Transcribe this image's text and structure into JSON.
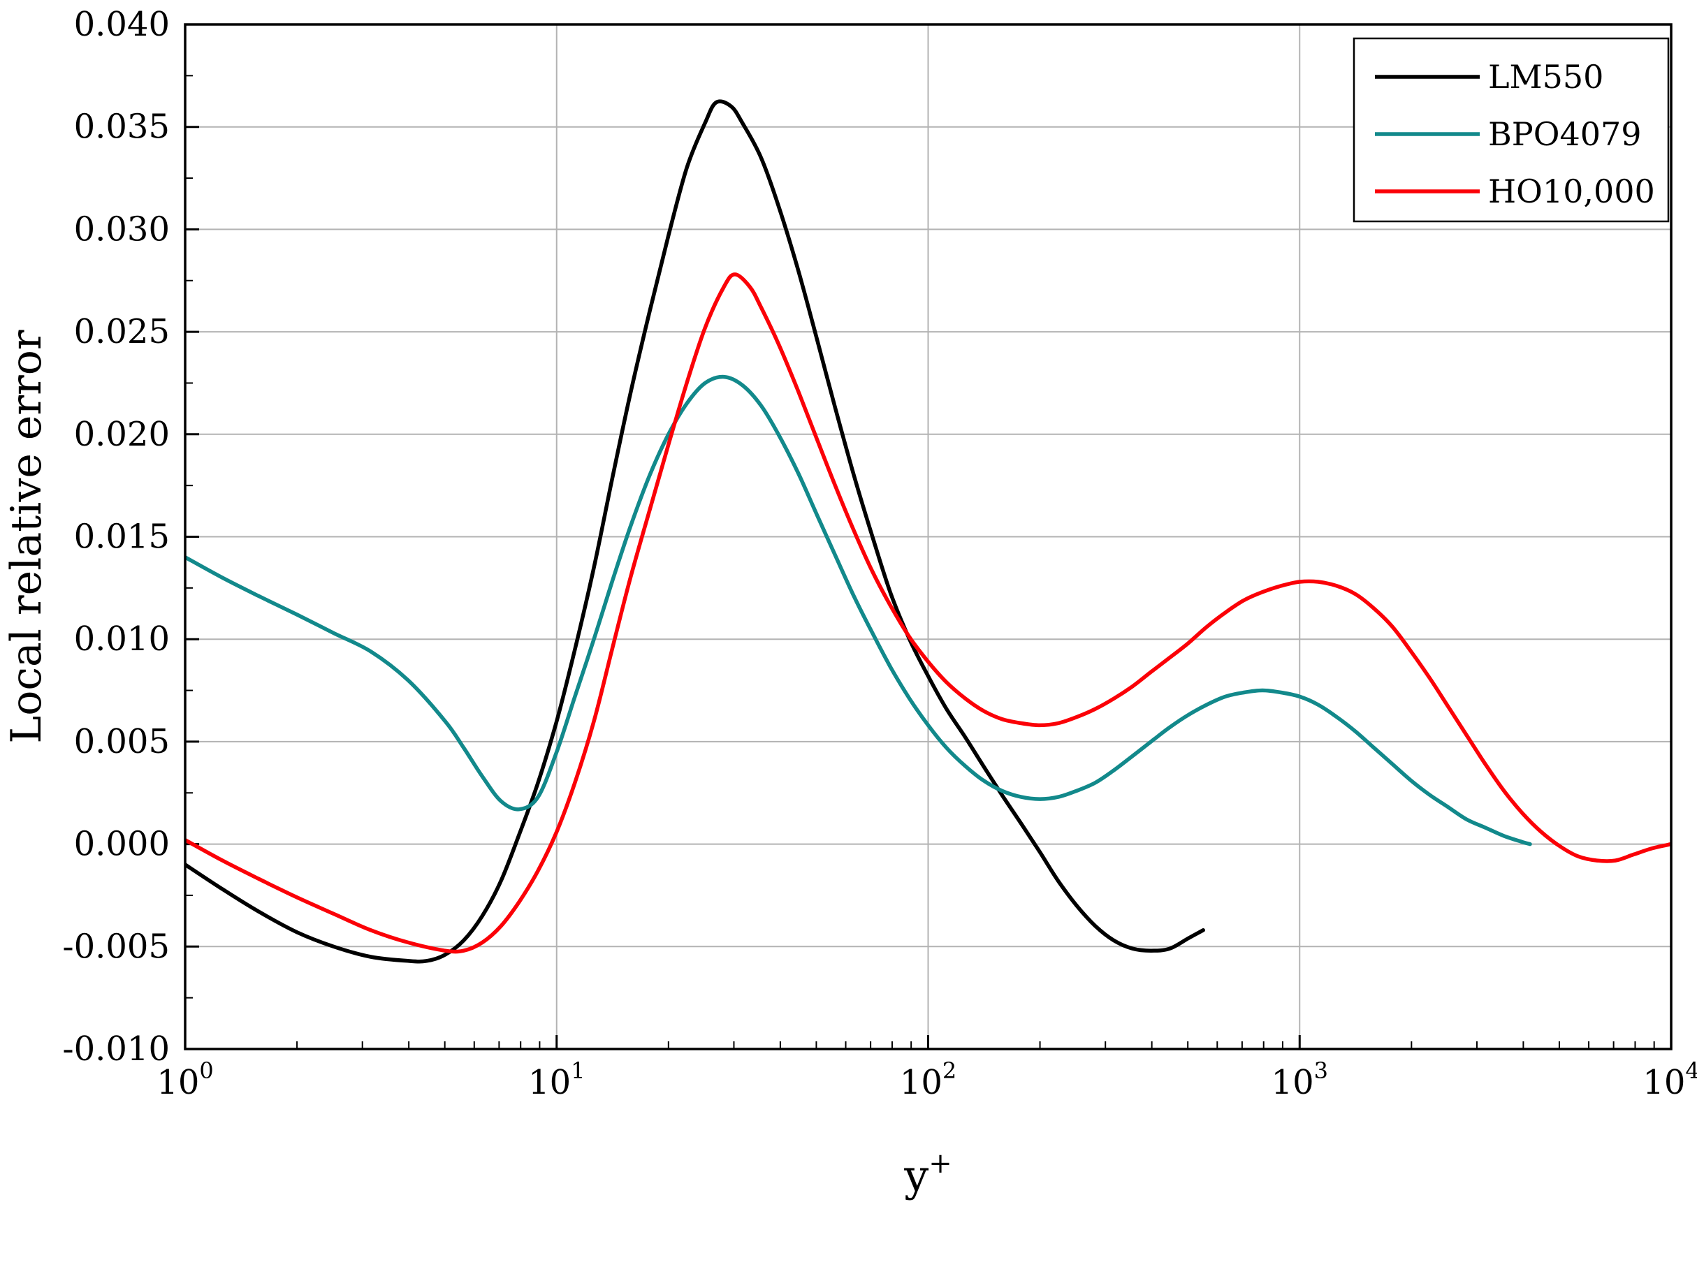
{
  "figure": {
    "background": "#ffffff"
  },
  "chart_data": {
    "type": "line",
    "title": "",
    "xlabel": "y",
    "xlabel_superscript": "+",
    "ylabel": "Local relative error",
    "x_scale": "log10",
    "xlim": [
      1,
      10000
    ],
    "ylim": [
      -0.01,
      0.04
    ],
    "x_ticks": {
      "base": "10",
      "exponents": [
        "0",
        "1",
        "2",
        "3",
        "4"
      ],
      "values": [
        1,
        10,
        100,
        1000,
        10000
      ]
    },
    "y_ticks": {
      "values": [
        -0.01,
        -0.005,
        0.0,
        0.005,
        0.01,
        0.015,
        0.02,
        0.025,
        0.03,
        0.035,
        0.04
      ],
      "labels": [
        "-0.010",
        "-0.005",
        "0.000",
        "0.005",
        "0.010",
        "0.015",
        "0.020",
        "0.025",
        "0.030",
        "0.035",
        "0.040"
      ]
    },
    "grid": {
      "show": true,
      "color": "#b3b3b3"
    },
    "axis_color": "#000000",
    "legend": {
      "position": "top-right",
      "border_color": "#000000",
      "background": "#ffffff"
    },
    "series": [
      {
        "name": "LM550",
        "color": "#000000",
        "points": [
          [
            1,
            -0.001
          ],
          [
            1.26,
            -0.0022
          ],
          [
            1.58,
            -0.0033
          ],
          [
            2.0,
            -0.0043
          ],
          [
            2.51,
            -0.005
          ],
          [
            3.16,
            -0.0055
          ],
          [
            3.98,
            -0.0057
          ],
          [
            4.47,
            -0.0057
          ],
          [
            5.01,
            -0.0054
          ],
          [
            5.62,
            -0.0047
          ],
          [
            6.31,
            -0.0035
          ],
          [
            7.08,
            -0.0018
          ],
          [
            7.94,
            0.0005
          ],
          [
            8.91,
            0.003
          ],
          [
            10,
            0.006
          ],
          [
            11.2,
            0.0095
          ],
          [
            12.6,
            0.0135
          ],
          [
            14.1,
            0.0178
          ],
          [
            15.8,
            0.022
          ],
          [
            17.8,
            0.026
          ],
          [
            20,
            0.0297
          ],
          [
            22.4,
            0.033
          ],
          [
            25.1,
            0.0352
          ],
          [
            26.9,
            0.0362
          ],
          [
            29.5,
            0.036
          ],
          [
            31.6,
            0.0352
          ],
          [
            35.5,
            0.0335
          ],
          [
            39.8,
            0.031
          ],
          [
            44.7,
            0.028
          ],
          [
            50.1,
            0.0247
          ],
          [
            56.2,
            0.0213
          ],
          [
            63.1,
            0.018
          ],
          [
            70.8,
            0.015
          ],
          [
            79.4,
            0.0122
          ],
          [
            89.1,
            0.01
          ],
          [
            100,
            0.0082
          ],
          [
            112,
            0.0066
          ],
          [
            126,
            0.0052
          ],
          [
            141,
            0.0038
          ],
          [
            158,
            0.0024
          ],
          [
            178,
            0.001
          ],
          [
            200,
            -0.0004
          ],
          [
            224,
            -0.0018
          ],
          [
            251,
            -0.003
          ],
          [
            282,
            -0.004
          ],
          [
            316,
            -0.0047
          ],
          [
            355,
            -0.0051
          ],
          [
            398,
            -0.0052
          ],
          [
            447,
            -0.0051
          ],
          [
            501,
            -0.0046
          ],
          [
            550,
            -0.0042
          ]
        ]
      },
      {
        "name": "BPO4079",
        "color": "#12898b",
        "points": [
          [
            1,
            0.014
          ],
          [
            1.26,
            0.013
          ],
          [
            1.58,
            0.0121
          ],
          [
            2.0,
            0.0112
          ],
          [
            2.51,
            0.0103
          ],
          [
            3.16,
            0.0094
          ],
          [
            3.98,
            0.008
          ],
          [
            5.01,
            0.006
          ],
          [
            5.62,
            0.0047
          ],
          [
            6.31,
            0.0033
          ],
          [
            7.08,
            0.0021
          ],
          [
            7.94,
            0.0017
          ],
          [
            8.91,
            0.0023
          ],
          [
            10,
            0.0045
          ],
          [
            11.2,
            0.0072
          ],
          [
            12.6,
            0.01
          ],
          [
            14.1,
            0.0128
          ],
          [
            15.8,
            0.0155
          ],
          [
            17.8,
            0.018
          ],
          [
            20,
            0.02
          ],
          [
            22.4,
            0.0215
          ],
          [
            25.1,
            0.0225
          ],
          [
            28.2,
            0.0228
          ],
          [
            31.6,
            0.0224
          ],
          [
            35.5,
            0.0214
          ],
          [
            39.8,
            0.0199
          ],
          [
            44.7,
            0.0181
          ],
          [
            50.1,
            0.0161
          ],
          [
            56.2,
            0.0141
          ],
          [
            63.1,
            0.0121
          ],
          [
            70.8,
            0.0103
          ],
          [
            79.4,
            0.0086
          ],
          [
            89.1,
            0.0071
          ],
          [
            100,
            0.0058
          ],
          [
            112,
            0.0047
          ],
          [
            126,
            0.0038
          ],
          [
            141,
            0.0031
          ],
          [
            158,
            0.0026
          ],
          [
            178,
            0.0023
          ],
          [
            200,
            0.0022
          ],
          [
            224,
            0.0023
          ],
          [
            251,
            0.0026
          ],
          [
            282,
            0.003
          ],
          [
            316,
            0.0036
          ],
          [
            355,
            0.0043
          ],
          [
            398,
            0.005
          ],
          [
            447,
            0.0057
          ],
          [
            501,
            0.0063
          ],
          [
            562,
            0.0068
          ],
          [
            631,
            0.0072
          ],
          [
            708,
            0.0074
          ],
          [
            794,
            0.0075
          ],
          [
            891,
            0.0074
          ],
          [
            1000,
            0.0072
          ],
          [
            1122,
            0.0068
          ],
          [
            1259,
            0.0062
          ],
          [
            1413,
            0.0055
          ],
          [
            1585,
            0.0047
          ],
          [
            1778,
            0.0039
          ],
          [
            1995,
            0.0031
          ],
          [
            2239,
            0.0024
          ],
          [
            2512,
            0.0018
          ],
          [
            2818,
            0.0012
          ],
          [
            3162,
            0.0008
          ],
          [
            3548,
            0.0004
          ],
          [
            3981,
            0.0001
          ],
          [
            4169,
            0.0
          ]
        ]
      },
      {
        "name": "HO10,000",
        "color": "#fb0107",
        "points": [
          [
            1,
            0.0002
          ],
          [
            1.26,
            -0.0008
          ],
          [
            1.58,
            -0.0017
          ],
          [
            2.0,
            -0.0026
          ],
          [
            2.51,
            -0.0034
          ],
          [
            3.16,
            -0.0042
          ],
          [
            3.98,
            -0.0048
          ],
          [
            5.01,
            -0.0052
          ],
          [
            5.62,
            -0.0052
          ],
          [
            6.31,
            -0.0048
          ],
          [
            7.08,
            -0.004
          ],
          [
            7.94,
            -0.0028
          ],
          [
            8.91,
            -0.0013
          ],
          [
            10,
            0.0006
          ],
          [
            11.2,
            0.003
          ],
          [
            12.6,
            0.006
          ],
          [
            14.1,
            0.0095
          ],
          [
            15.8,
            0.013
          ],
          [
            17.8,
            0.0163
          ],
          [
            20,
            0.0195
          ],
          [
            22.4,
            0.0225
          ],
          [
            25.1,
            0.0252
          ],
          [
            28.2,
            0.0272
          ],
          [
            30.2,
            0.0278
          ],
          [
            33.1,
            0.0272
          ],
          [
            35.5,
            0.0262
          ],
          [
            39.8,
            0.0243
          ],
          [
            44.7,
            0.0221
          ],
          [
            50.1,
            0.0198
          ],
          [
            56.2,
            0.0175
          ],
          [
            63.1,
            0.0153
          ],
          [
            70.8,
            0.0133
          ],
          [
            79.4,
            0.0116
          ],
          [
            89.1,
            0.0101
          ],
          [
            100,
            0.0089
          ],
          [
            112,
            0.0079
          ],
          [
            126,
            0.0071
          ],
          [
            141,
            0.0065
          ],
          [
            158,
            0.0061
          ],
          [
            178,
            0.0059
          ],
          [
            200,
            0.0058
          ],
          [
            224,
            0.0059
          ],
          [
            251,
            0.0062
          ],
          [
            282,
            0.0066
          ],
          [
            316,
            0.0071
          ],
          [
            355,
            0.0077
          ],
          [
            398,
            0.0084
          ],
          [
            447,
            0.0091
          ],
          [
            501,
            0.0098
          ],
          [
            562,
            0.0106
          ],
          [
            631,
            0.0113
          ],
          [
            708,
            0.0119
          ],
          [
            794,
            0.0123
          ],
          [
            891,
            0.0126
          ],
          [
            1000,
            0.0128
          ],
          [
            1122,
            0.0128
          ],
          [
            1259,
            0.0126
          ],
          [
            1413,
            0.0122
          ],
          [
            1585,
            0.0115
          ],
          [
            1778,
            0.0106
          ],
          [
            1995,
            0.0094
          ],
          [
            2239,
            0.0081
          ],
          [
            2512,
            0.0067
          ],
          [
            2818,
            0.0053
          ],
          [
            3162,
            0.0039
          ],
          [
            3548,
            0.0026
          ],
          [
            3981,
            0.0015
          ],
          [
            4467,
            0.0006
          ],
          [
            5012,
            -0.0001
          ],
          [
            5623,
            -0.0006
          ],
          [
            6310,
            -0.0008
          ],
          [
            7079,
            -0.0008
          ],
          [
            7943,
            -0.0005
          ],
          [
            8913,
            -0.0002
          ],
          [
            10000,
            0.0
          ]
        ]
      }
    ]
  }
}
